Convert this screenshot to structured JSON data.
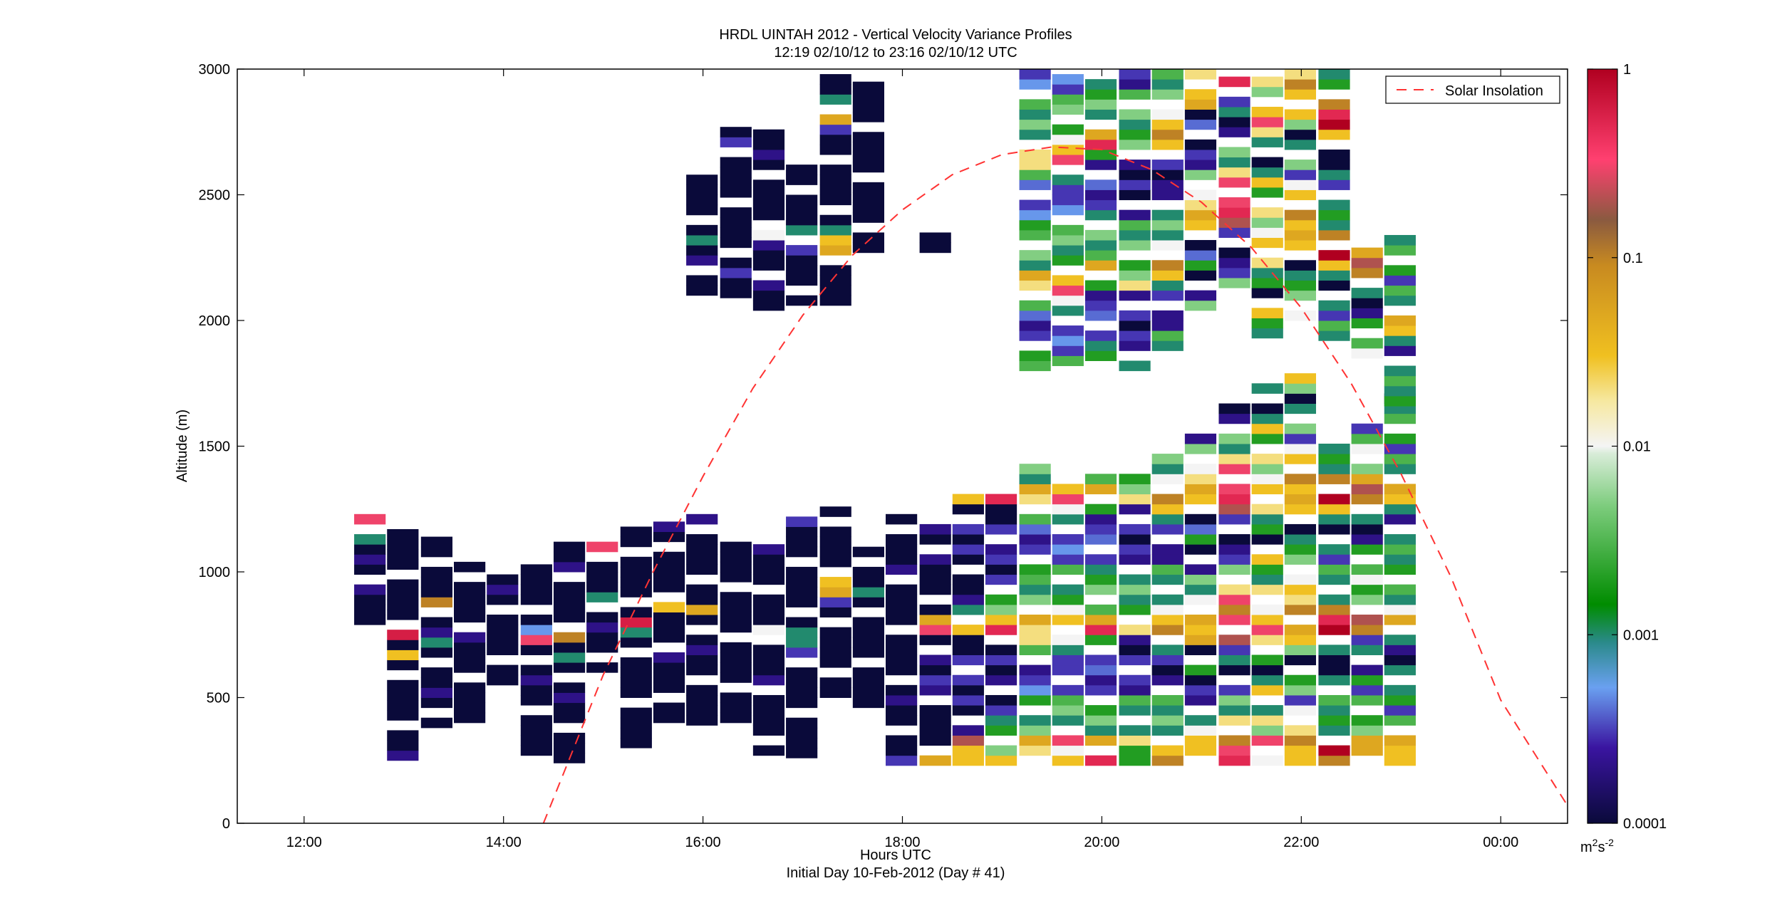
{
  "chart_data": {
    "type": "heatmap",
    "title": "HRDL UINTAH 2012 - Vertical Velocity Variance Profiles",
    "subtitle": "12:19 02/10/12 to 23:16 02/10/12  UTC",
    "xlabel": "Hours UTC",
    "xlabel_note": "Initial Day 10-Feb-2012 (Day # 41)",
    "ylabel": "Altitude (m)",
    "xlim": [
      11.33,
      24.67
    ],
    "ylim": [
      0,
      3000
    ],
    "x_ticks": [
      {
        "value": 12,
        "label": "12:00"
      },
      {
        "value": 14,
        "label": "14:00"
      },
      {
        "value": 16,
        "label": "16:00"
      },
      {
        "value": 18,
        "label": "18:00"
      },
      {
        "value": 20,
        "label": "20:00"
      },
      {
        "value": 22,
        "label": "22:00"
      },
      {
        "value": 24,
        "label": "00:00"
      }
    ],
    "y_ticks": [
      0,
      500,
      1000,
      1500,
      2000,
      2500,
      3000
    ],
    "grid": false,
    "colorbar": {
      "scale": "log",
      "range": [
        0.0001,
        1
      ],
      "unit_label": "m2s-2",
      "ticks": [
        {
          "value": 1,
          "label": "1"
        },
        {
          "value": 0.1,
          "label": "0.1"
        },
        {
          "value": 0.01,
          "label": "0.01"
        },
        {
          "value": 0.001,
          "label": "0.001"
        },
        {
          "value": 0.0001,
          "label": "0.0001"
        }
      ]
    },
    "legend": {
      "position": "top-right",
      "entries": [
        "Solar Insolation"
      ]
    },
    "solar_insolation": {
      "style": "red dashed curve",
      "points": [
        [
          14.4,
          0
        ],
        [
          15.0,
          590
        ],
        [
          15.5,
          1000
        ],
        [
          16.0,
          1380
        ],
        [
          16.5,
          1730
        ],
        [
          17.0,
          2020
        ],
        [
          17.5,
          2260
        ],
        [
          18.0,
          2440
        ],
        [
          18.5,
          2580
        ],
        [
          19.0,
          2660
        ],
        [
          19.5,
          2690
        ],
        [
          20.0,
          2680
        ],
        [
          20.5,
          2600
        ],
        [
          21.0,
          2470
        ],
        [
          21.5,
          2290
        ],
        [
          22.0,
          2050
        ],
        [
          22.5,
          1750
        ],
        [
          23.0,
          1390
        ],
        [
          23.5,
          980
        ],
        [
          24.0,
          490
        ],
        [
          24.67,
          70
        ]
      ]
    },
    "profiles": {
      "x_hours": [
        12.66,
        12.99,
        13.33,
        13.66,
        13.99,
        14.33,
        14.66,
        14.99,
        15.33,
        15.66,
        15.99,
        16.33,
        16.66,
        16.99,
        17.33,
        17.66,
        17.99,
        18.33,
        18.66,
        18.99,
        19.33,
        19.66,
        19.99,
        20.33,
        20.66,
        20.99,
        21.33,
        21.66,
        21.99,
        22.33,
        22.66,
        22.99
      ],
      "low_layer_top_m": [
        1260,
        1200,
        1150,
        1060,
        1010,
        1060,
        1150,
        1150,
        1200,
        1210,
        1250,
        1160,
        1150,
        1260,
        1260,
        1100,
        1260,
        1220,
        1340,
        1320,
        1450,
        1420,
        1420,
        1420,
        1470,
        1580,
        1700,
        1750,
        1800,
        1560,
        1620,
        1730
      ],
      "low_layer_bottom_m": [
        750,
        250,
        380,
        400,
        550,
        230,
        240,
        600,
        300,
        400,
        350,
        400,
        270,
        260,
        500,
        420,
        230,
        230,
        230,
        230,
        230,
        230,
        230,
        230,
        230,
        230,
        230,
        230,
        230,
        230,
        230,
        230
      ],
      "upper_layer_top_m": [
        0,
        0,
        0,
        0,
        0,
        0,
        0,
        0,
        0,
        0,
        2620,
        2780,
        2770,
        2630,
        3000,
        2970,
        0,
        2380,
        0,
        0,
        3000,
        3000,
        3000,
        3000,
        3000,
        3000,
        3000,
        3000,
        3000,
        3000,
        2310,
        2360
      ],
      "upper_layer_bottom_m": [
        0,
        0,
        0,
        0,
        0,
        0,
        0,
        0,
        0,
        0,
        2100,
        2050,
        2040,
        2060,
        2060,
        2270,
        0,
        2270,
        0,
        0,
        1800,
        1780,
        1840,
        1800,
        1880,
        2040,
        2090,
        1930,
        2000,
        1920,
        1850,
        1620
      ]
    },
    "variance_m2s2": [
      [
        0.0001,
        0.0001,
        0.0001,
        0.0001,
        0.0002,
        0.0001,
        0.0001,
        0.0002,
        0.0001,
        0.001,
        0.03,
        0.3,
        0.5
      ],
      [
        0.0002,
        0.0001,
        0.0001,
        0.0001,
        0.0001,
        0.0001,
        0.0001,
        0.0001,
        0.0001,
        0.0001,
        0.03,
        0.0001,
        0.6
      ],
      [
        0.0001,
        0.0001,
        0.0001,
        0.0002,
        0.0001,
        0.0001,
        0.0001,
        0.0001,
        0.001,
        0.0002,
        0.0001,
        0.02,
        0.1
      ],
      [
        0.0001,
        0.0001,
        0.0001,
        0.0001,
        0.0001,
        0.0001,
        0.0001,
        0.0001,
        0.0002,
        0.0001,
        0.0001,
        0.0001,
        0.0001
      ],
      [
        0.0001,
        0.0001,
        0.0001,
        0.0001,
        0.0001,
        0.0001,
        0.0001,
        0.0001,
        0.0001,
        0.0002,
        0.0001,
        0.0001,
        0.0001
      ],
      [
        0.0005,
        0.0001,
        0.0001,
        0.0001,
        0.0001,
        0.0001,
        0.0001,
        0.0001,
        0.0002,
        0.0001,
        0.0003,
        0.0001,
        0.3
      ],
      [
        0.0001,
        0.0001,
        0.0001,
        0.0001,
        0.0001,
        0.0001,
        0.0002,
        0.0001,
        0.0001,
        0.0001,
        0.001,
        0.0001,
        0.1
      ],
      [
        0.0001,
        0.0001,
        0.0001,
        0.0001,
        0.0002,
        0.0001,
        0.0001,
        0.001,
        0.0001,
        0.0001,
        0.0001,
        0.0002,
        0.3
      ],
      [
        0.0001,
        0.0001,
        0.0001,
        0.0001,
        0.0001,
        0.0001,
        0.0001,
        0.0001,
        0.0001,
        0.0002,
        0.0001,
        0.001,
        0.6
      ],
      [
        0.0001,
        0.0001,
        0.0001,
        0.0001,
        0.0001,
        0.0001,
        0.0002,
        0.0001,
        0.0001,
        0.0001,
        0.0001,
        0.03,
        0.5
      ],
      [
        0.0001,
        0.0001,
        0.0001,
        0.0001,
        0.0001,
        0.0001,
        0.0001,
        0.0001,
        0.0002,
        0.0001,
        0.001,
        0.0001,
        0.05
      ],
      [
        0.0001,
        0.0001,
        0.0001,
        0.0001,
        0.0001,
        0.0001,
        0.0001,
        0.0001,
        0.0003,
        0.0001,
        0.0001,
        0.0001,
        0.0001
      ],
      [
        0.0001,
        0.0001,
        0.0001,
        0.0001,
        0.0001,
        0.0001,
        0.0001,
        0.0002,
        0.0001,
        0.0001,
        0.0001,
        0.0002,
        0.01
      ],
      [
        0.0001,
        0.0001,
        0.0001,
        0.0001,
        0.0001,
        0.0001,
        0.0001,
        0.0001,
        0.0001,
        0.0001,
        0.0003,
        0.001,
        0.001
      ],
      [
        0.0001,
        0.0001,
        0.0001,
        0.0001,
        0.0001,
        0.0001,
        0.0001,
        0.0001,
        0.0001,
        0.0003,
        0.05,
        0.03,
        0.001
      ],
      [
        0.0001,
        0.0001,
        0.0001,
        0.0001,
        0.0001,
        0.0001,
        0.0001,
        0.0001,
        0.0001,
        0.0001,
        0.0001,
        0.0001,
        0.001
      ],
      [
        0.0003,
        0.0001,
        0.0001,
        0.0001,
        0.0001,
        0.0001,
        0.0002,
        0.0001,
        0.0001,
        0.0001,
        0.0001,
        0.0001,
        0.0001
      ],
      [
        0.3,
        0.05,
        0.0001,
        0.0001,
        0.0001,
        0.0001,
        0.0001,
        0.0002,
        0.0003,
        0.0001,
        0.0002,
        0.0001,
        0.0001
      ],
      [
        0.03,
        0.2,
        0.001,
        0.0002,
        0.0001,
        0.0001,
        0.0003,
        0.0001,
        0.0003,
        0.0001,
        0.0003,
        0.0001,
        0.0001
      ],
      [
        0.5,
        0.03,
        0.005,
        0.002,
        0.001,
        0.0003,
        0.0001,
        0.0003,
        0.0002,
        0.0001,
        0.0003,
        0.0001,
        0.0001
      ],
      [
        0.02,
        0.05,
        0.001,
        0.005,
        0.001,
        0.003,
        0.002,
        0.0005,
        0.0003,
        0.0002,
        0.0004,
        0.003,
        0.02
      ],
      [
        0.3,
        0.03,
        0.01,
        0.002,
        0.001,
        0.005,
        0.003,
        0.0003,
        0.0005,
        0.0003,
        0.0003,
        0.001,
        0.01
      ],
      [
        0.5,
        0.05,
        0.003,
        0.001,
        0.005,
        0.002,
        0.001,
        0.0003,
        0.0002,
        0.0004,
        0.0003,
        0.0002,
        0.002
      ],
      [
        0.02,
        0.005,
        0.002,
        0.001,
        0.005,
        0.001,
        0.003,
        0.0002,
        0.0003,
        0.0001,
        0.0003,
        0.0001,
        0.0002
      ],
      [
        0.1,
        0.03,
        0.01,
        0.001,
        0.005,
        0.001,
        0.003,
        0.0002,
        0.0002,
        0.0001,
        0.0003,
        0.001,
        0.03
      ],
      [
        0.03,
        0.05,
        0.02,
        0.01,
        0.001,
        0.005,
        0.0002,
        0.0003,
        0.0001,
        0.002,
        0.0004,
        0.0001,
        0.05
      ],
      [
        0.5,
        0.3,
        0.1,
        0.3,
        0.02,
        0.001,
        0.005,
        0.0003,
        0.0002,
        0.0001,
        0.001,
        0.0003,
        0.2
      ],
      [
        0.3,
        0.03,
        0.01,
        0.005,
        0.02,
        0.001,
        0.002,
        0.03,
        0.001,
        0.0001,
        0.002,
        0.001,
        0.02
      ],
      [
        0.05,
        0.03,
        0.1,
        0.02,
        0.03,
        0.01,
        0.0003,
        0.005,
        0.002,
        0.001,
        0.0001,
        0.005,
        0.03
      ],
      [
        1.0,
        0.5,
        0.1,
        0.001,
        0.002,
        0.001,
        0.003,
        0.0003,
        0.001,
        0.0001,
        0.0001,
        0.001,
        0.03
      ],
      [
        0.1,
        0.2,
        0.05,
        0.005,
        0.002,
        0.01,
        0.003,
        0.0003,
        0.002,
        0.0002,
        0.0001,
        0.001,
        0.0003
      ],
      [
        0.03,
        0.05,
        0.01,
        0.001,
        0.003,
        0.0003,
        0.002,
        0.001,
        0.003,
        0.001,
        0.0001,
        0.0002,
        0.001
      ]
    ]
  },
  "legend_label": "Solar Insolation",
  "colors": {
    "insolation_line": "#ff3333",
    "axis": "#000000",
    "colormap_stops": [
      "#0a0a3a",
      "#3a14a0",
      "#6aa0f0",
      "#2a8a8a",
      "#008c00",
      "#c8e8c8",
      "#f4f4f4",
      "#f0d040",
      "#c88a20",
      "#8a5a40",
      "#ff4070",
      "#b00020"
    ]
  }
}
